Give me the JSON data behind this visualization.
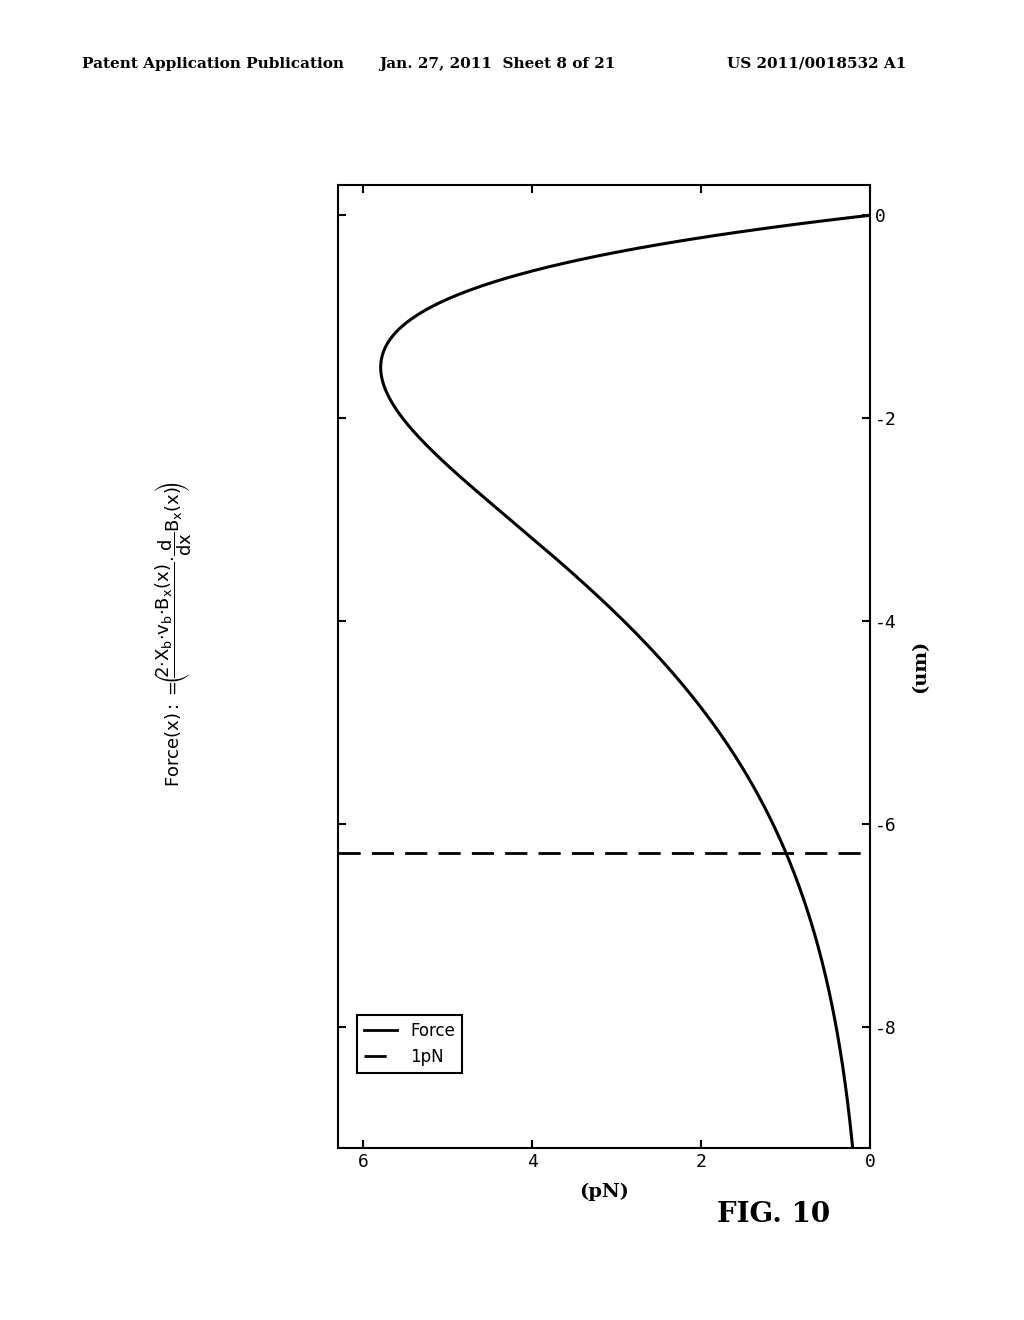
{
  "header_left": "Patent Application Publication",
  "header_center": "Jan. 27, 2011  Sheet 8 of 21",
  "header_right": "US 2011/0018532 A1",
  "fig_label": "FIG. 10",
  "xlabel_bottom": "(pN)",
  "ylabel_right": "(um)",
  "x_ticks": [
    0,
    2,
    4,
    6
  ],
  "x_tick_labels": [
    "0",
    "2",
    "4",
    "6"
  ],
  "y_ticks": [
    0,
    -2,
    -4,
    -6,
    -8
  ],
  "y_tick_labels": [
    "0",
    "-2",
    "-4",
    "-6",
    "-8"
  ],
  "x_lim": [
    6.3,
    0
  ],
  "y_lim": [
    -9.2,
    0.3
  ],
  "dashed_y": -6.5,
  "legend_force": "Force",
  "legend_1pN": "1pN",
  "line_color": "#000000",
  "dashed_color": "#000000",
  "background_color": "#ffffff",
  "header_fontsize": 11,
  "fig_label_fontsize": 20,
  "axis_label_fontsize": 14,
  "tick_fontsize": 13,
  "tau": 1.5,
  "C": 10.5
}
